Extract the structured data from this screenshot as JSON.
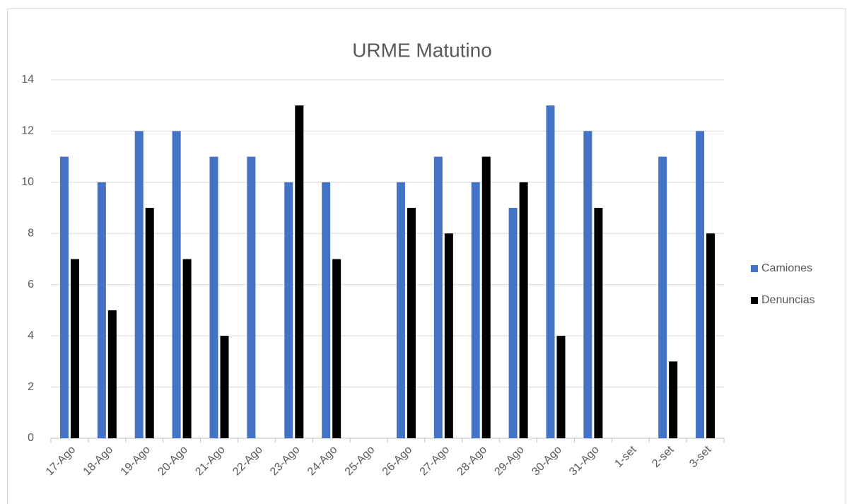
{
  "chart_data": {
    "type": "bar",
    "title": "URME Matutino",
    "categories": [
      "17-Ago",
      "18-Ago",
      "19-Ago",
      "20-Ago",
      "21-Ago",
      "22-Ago",
      "23-Ago",
      "24-Ago",
      "25-Ago",
      "26-Ago",
      "27-Ago",
      "28-Ago",
      "29-Ago",
      "30-Ago",
      "31-Ago",
      "1-set",
      "2-set",
      "3-set"
    ],
    "series": [
      {
        "name": "Camiones",
        "color": "#4472c4",
        "values": [
          11,
          10,
          12,
          12,
          11,
          11,
          10,
          10,
          null,
          10,
          11,
          10,
          9,
          13,
          12,
          null,
          11,
          12
        ]
      },
      {
        "name": "Denuncias",
        "color": "#000000",
        "values": [
          7,
          5,
          9,
          7,
          4,
          null,
          13,
          7,
          null,
          9,
          8,
          11,
          10,
          4,
          9,
          null,
          3,
          8
        ]
      }
    ],
    "ylim": [
      0,
      14
    ],
    "yticks": [
      0,
      2,
      4,
      6,
      8,
      10,
      12,
      14
    ],
    "grid": true,
    "legend": "right"
  }
}
